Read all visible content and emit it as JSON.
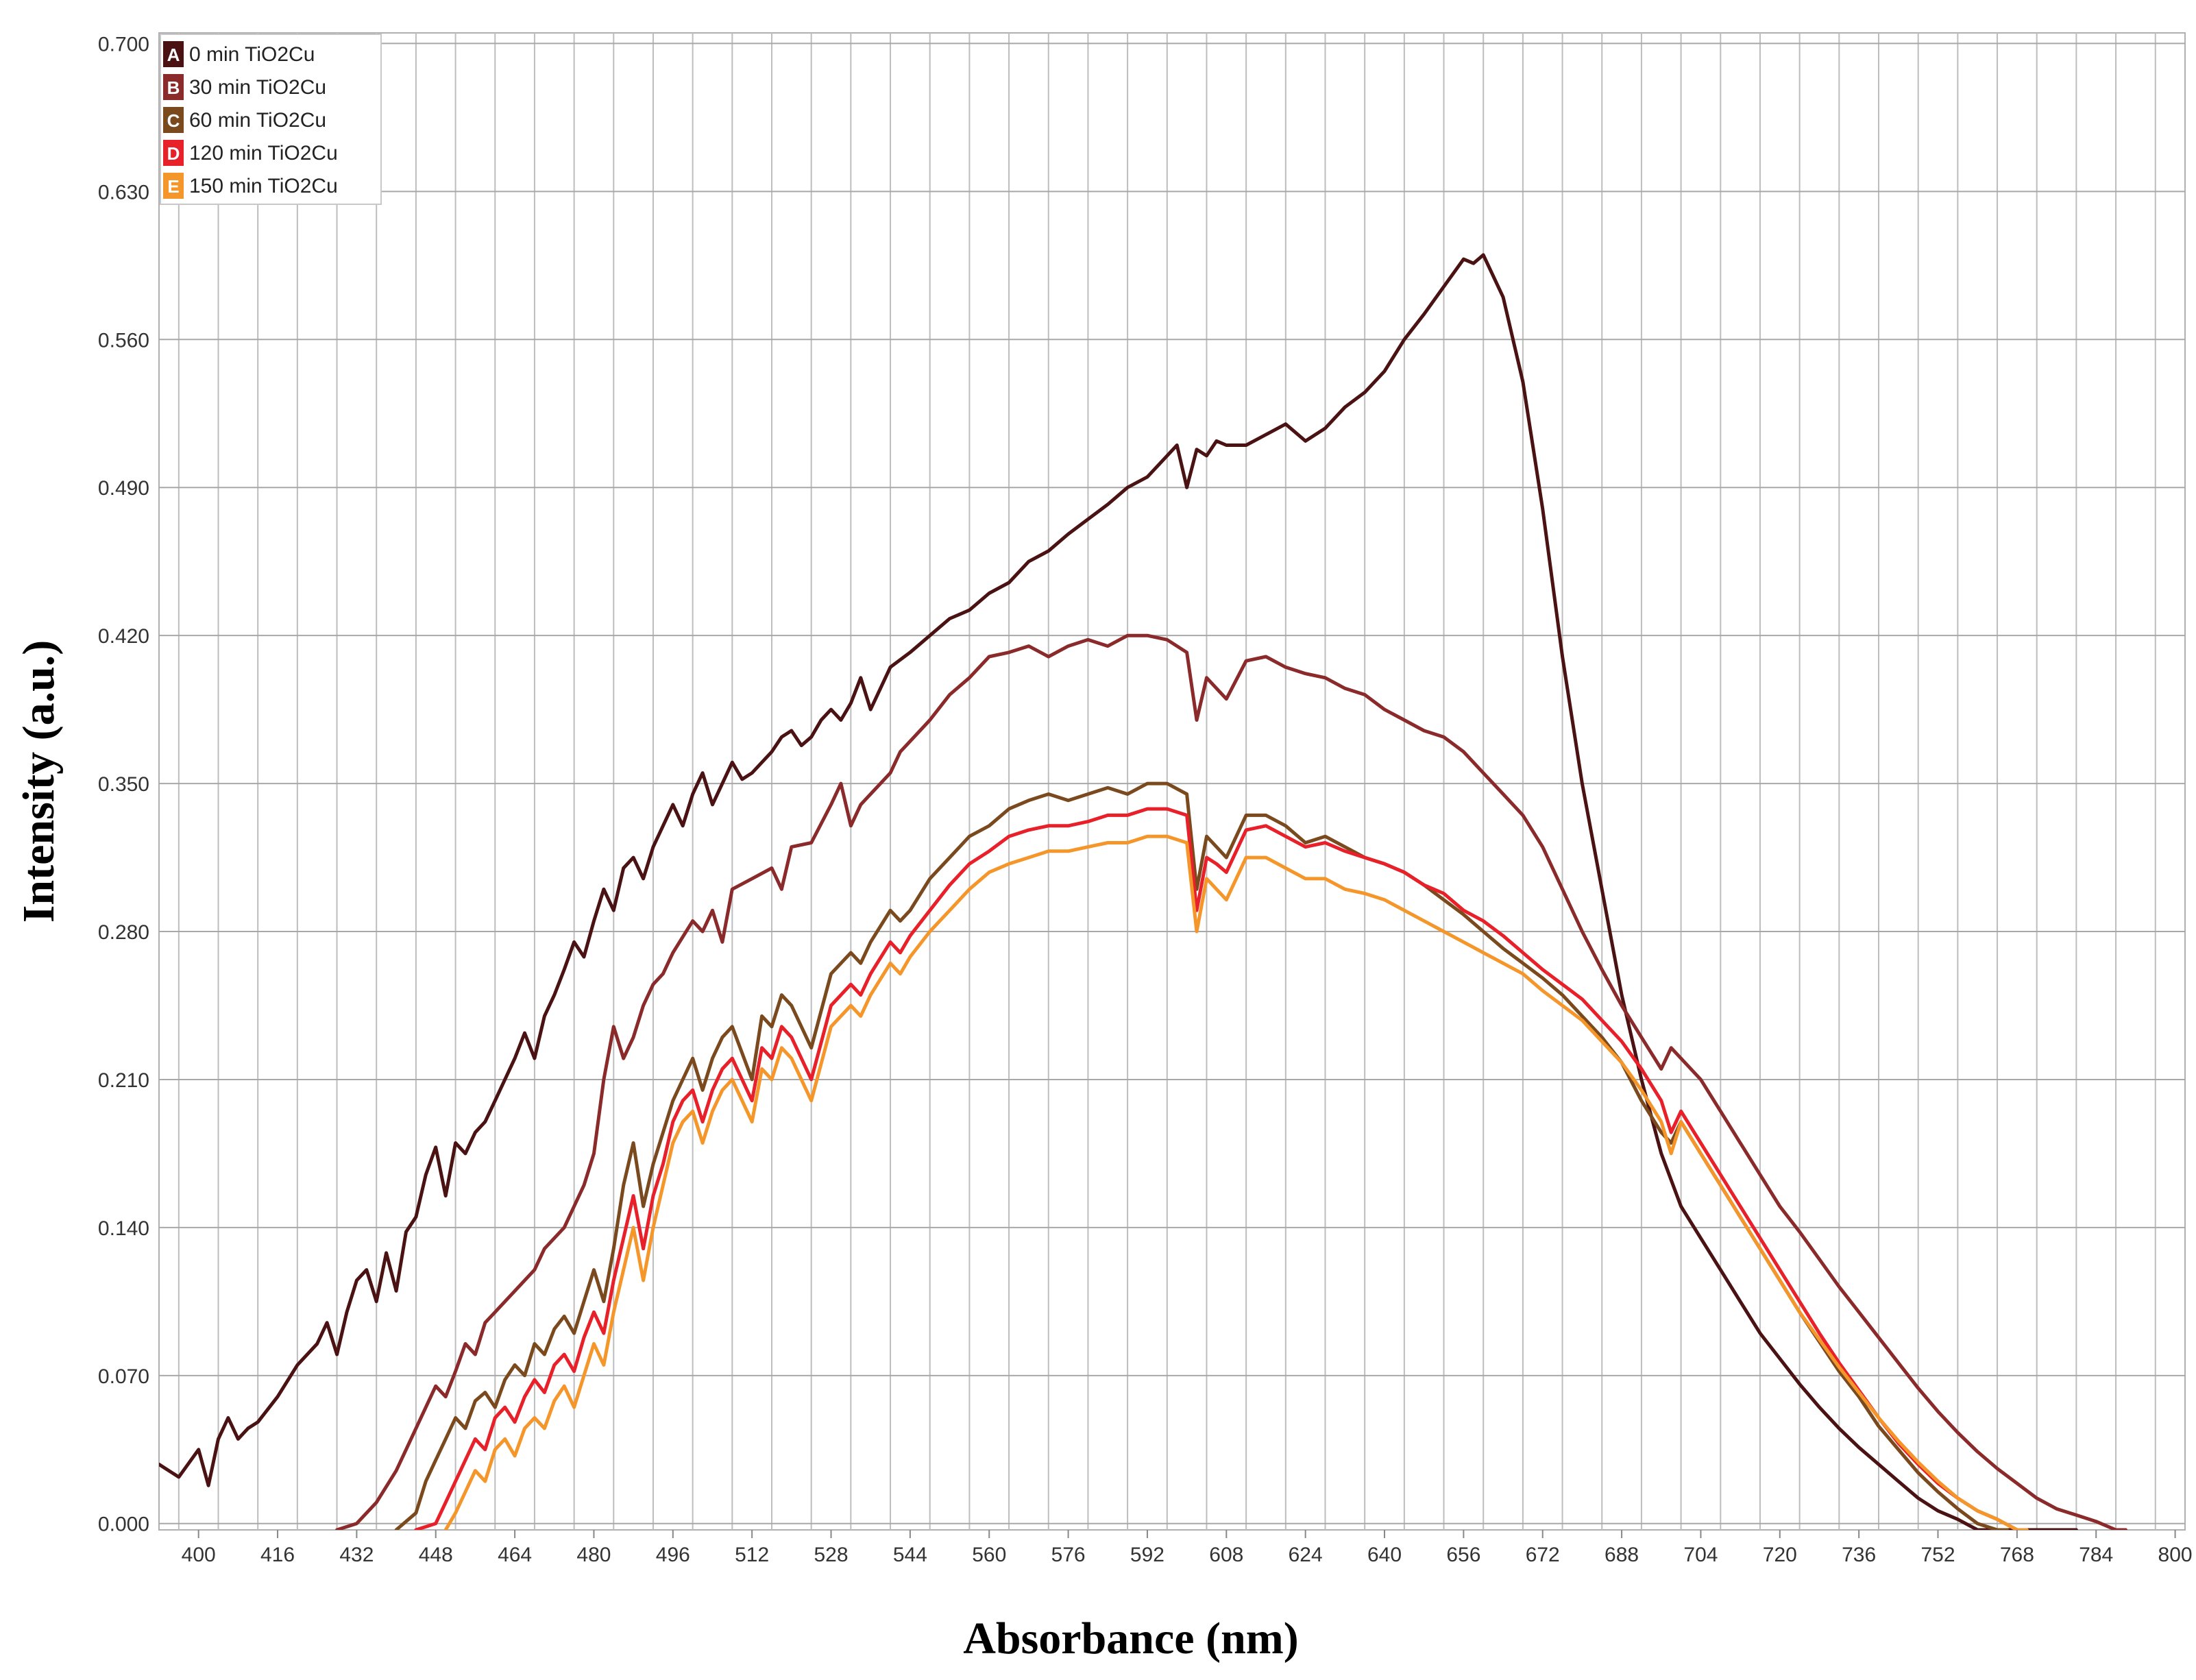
{
  "chart_data": {
    "type": "line",
    "title": "",
    "xlabel": "Absorbance (nm)",
    "ylabel": "Intensity (a.u.)",
    "xlim": [
      392,
      802
    ],
    "ylim": [
      -0.003,
      0.705
    ],
    "x_ticks": [
      400,
      416,
      432,
      448,
      464,
      480,
      496,
      512,
      528,
      544,
      560,
      576,
      592,
      608,
      624,
      640,
      656,
      672,
      688,
      704,
      720,
      736,
      752,
      768,
      784,
      800
    ],
    "x_tick_labels": [
      "400",
      "416",
      "432",
      "448",
      "464",
      "480",
      "496",
      "512",
      "528",
      "544",
      "560",
      "576",
      "592",
      "608",
      "624",
      "640",
      "656",
      "672",
      "688",
      "704",
      "720",
      "736",
      "752",
      "768",
      "784",
      "800"
    ],
    "y_ticks": [
      0.0,
      0.07,
      0.14,
      0.21,
      0.28,
      0.35,
      0.42,
      0.49,
      0.56,
      0.63,
      0.7
    ],
    "y_tick_labels": [
      "0.000",
      "0.070",
      "0.140",
      "0.210",
      "0.280",
      "0.350",
      "0.420",
      "0.490",
      "0.560",
      "0.630",
      "0.700"
    ],
    "grid": true,
    "legend_position": "top-left",
    "series": [
      {
        "name": "0 min TiO2Cu",
        "letter": "A",
        "color": "#4a1212",
        "x": [
          392,
          396,
          400,
          402,
          404,
          406,
          408,
          410,
          412,
          416,
          420,
          424,
          426,
          428,
          430,
          432,
          434,
          436,
          438,
          440,
          442,
          444,
          446,
          448,
          450,
          452,
          454,
          456,
          458,
          460,
          464,
          466,
          468,
          470,
          472,
          474,
          476,
          478,
          480,
          482,
          484,
          486,
          488,
          490,
          492,
          494,
          496,
          498,
          500,
          502,
          504,
          506,
          508,
          510,
          512,
          514,
          516,
          518,
          520,
          522,
          524,
          526,
          528,
          530,
          532,
          534,
          536,
          540,
          544,
          548,
          552,
          556,
          560,
          564,
          568,
          572,
          576,
          580,
          584,
          588,
          592,
          596,
          598,
          600,
          602,
          604,
          606,
          608,
          612,
          616,
          620,
          624,
          628,
          632,
          636,
          640,
          644,
          648,
          652,
          656,
          658,
          660,
          664,
          668,
          672,
          676,
          680,
          684,
          688,
          692,
          696,
          700,
          704,
          708,
          712,
          716,
          720,
          724,
          728,
          732,
          736,
          740,
          744,
          748,
          752,
          756,
          760,
          764,
          768,
          772,
          776,
          780
        ],
        "values": [
          0.028,
          0.022,
          0.035,
          0.018,
          0.04,
          0.05,
          0.04,
          0.045,
          0.048,
          0.06,
          0.075,
          0.085,
          0.095,
          0.08,
          0.1,
          0.115,
          0.12,
          0.105,
          0.128,
          0.11,
          0.138,
          0.145,
          0.165,
          0.178,
          0.155,
          0.18,
          0.175,
          0.185,
          0.19,
          0.2,
          0.22,
          0.232,
          0.22,
          0.24,
          0.25,
          0.262,
          0.275,
          0.268,
          0.285,
          0.3,
          0.29,
          0.31,
          0.315,
          0.305,
          0.32,
          0.33,
          0.34,
          0.33,
          0.345,
          0.355,
          0.34,
          0.35,
          0.36,
          0.352,
          0.355,
          0.36,
          0.365,
          0.372,
          0.375,
          0.368,
          0.372,
          0.38,
          0.385,
          0.38,
          0.388,
          0.4,
          0.385,
          0.405,
          0.412,
          0.42,
          0.428,
          0.432,
          0.44,
          0.445,
          0.455,
          0.46,
          0.468,
          0.475,
          0.482,
          0.49,
          0.495,
          0.505,
          0.51,
          0.49,
          0.508,
          0.505,
          0.512,
          0.51,
          0.51,
          0.515,
          0.52,
          0.512,
          0.518,
          0.528,
          0.535,
          0.545,
          0.56,
          0.572,
          0.585,
          0.598,
          0.596,
          0.6,
          0.58,
          0.54,
          0.48,
          0.41,
          0.35,
          0.3,
          0.25,
          0.21,
          0.175,
          0.15,
          0.135,
          0.12,
          0.105,
          0.09,
          0.078,
          0.066,
          0.055,
          0.045,
          0.036,
          0.028,
          0.02,
          0.012,
          0.006,
          0.002,
          -0.003,
          -0.003,
          -0.003,
          -0.003,
          -0.003,
          -0.003
        ]
      },
      {
        "name": "30 min TiO2Cu",
        "letter": "B",
        "color": "#8b2a2a",
        "x": [
          428,
          432,
          436,
          440,
          442,
          444,
          446,
          448,
          450,
          452,
          454,
          456,
          458,
          460,
          464,
          468,
          470,
          472,
          474,
          476,
          478,
          480,
          482,
          484,
          486,
          488,
          490,
          492,
          494,
          496,
          500,
          502,
          504,
          506,
          508,
          512,
          516,
          518,
          520,
          524,
          528,
          530,
          532,
          534,
          536,
          540,
          542,
          544,
          548,
          552,
          556,
          560,
          564,
          568,
          572,
          576,
          580,
          584,
          588,
          592,
          596,
          600,
          602,
          604,
          606,
          608,
          612,
          616,
          620,
          624,
          628,
          632,
          636,
          640,
          644,
          648,
          652,
          656,
          660,
          664,
          668,
          672,
          676,
          680,
          684,
          688,
          692,
          696,
          698,
          700,
          704,
          708,
          712,
          716,
          720,
          724,
          728,
          732,
          736,
          740,
          744,
          748,
          752,
          756,
          760,
          764,
          768,
          772,
          776,
          780,
          784,
          788,
          790
        ],
        "values": [
          -0.003,
          0.0,
          0.01,
          0.025,
          0.035,
          0.045,
          0.055,
          0.065,
          0.06,
          0.072,
          0.085,
          0.08,
          0.095,
          0.1,
          0.11,
          0.12,
          0.13,
          0.135,
          0.14,
          0.15,
          0.16,
          0.175,
          0.21,
          0.235,
          0.22,
          0.23,
          0.245,
          0.255,
          0.26,
          0.27,
          0.285,
          0.28,
          0.29,
          0.275,
          0.3,
          0.305,
          0.31,
          0.3,
          0.32,
          0.322,
          0.34,
          0.35,
          0.33,
          0.34,
          0.345,
          0.355,
          0.365,
          0.37,
          0.38,
          0.392,
          0.4,
          0.41,
          0.412,
          0.415,
          0.41,
          0.415,
          0.418,
          0.415,
          0.42,
          0.42,
          0.418,
          0.412,
          0.38,
          0.4,
          0.395,
          0.39,
          0.408,
          0.41,
          0.405,
          0.402,
          0.4,
          0.395,
          0.392,
          0.385,
          0.38,
          0.375,
          0.372,
          0.365,
          0.355,
          0.345,
          0.335,
          0.32,
          0.3,
          0.28,
          0.262,
          0.245,
          0.23,
          0.215,
          0.225,
          0.22,
          0.21,
          0.195,
          0.18,
          0.165,
          0.15,
          0.138,
          0.125,
          0.112,
          0.1,
          0.088,
          0.076,
          0.064,
          0.053,
          0.043,
          0.034,
          0.026,
          0.019,
          0.012,
          0.007,
          0.004,
          0.001,
          -0.003,
          -0.003
        ]
      },
      {
        "name": "60 min TiO2Cu",
        "letter": "C",
        "color": "#7a4a1e",
        "x": [
          440,
          444,
          446,
          448,
          450,
          452,
          454,
          456,
          458,
          460,
          462,
          464,
          466,
          468,
          470,
          472,
          474,
          476,
          478,
          480,
          482,
          484,
          486,
          488,
          490,
          492,
          494,
          496,
          498,
          500,
          502,
          504,
          506,
          508,
          512,
          514,
          516,
          518,
          520,
          524,
          528,
          532,
          534,
          536,
          540,
          542,
          544,
          548,
          552,
          556,
          560,
          564,
          568,
          572,
          576,
          580,
          584,
          588,
          592,
          596,
          600,
          602,
          604,
          606,
          608,
          612,
          616,
          620,
          624,
          628,
          632,
          636,
          640,
          644,
          648,
          652,
          656,
          660,
          664,
          668,
          672,
          676,
          680,
          684,
          688,
          692,
          696,
          698,
          700,
          704,
          708,
          712,
          716,
          720,
          724,
          728,
          732,
          736,
          740,
          744,
          748,
          752,
          756,
          760,
          764,
          766
        ],
        "values": [
          -0.003,
          0.005,
          0.02,
          0.03,
          0.04,
          0.05,
          0.045,
          0.058,
          0.062,
          0.055,
          0.068,
          0.075,
          0.07,
          0.085,
          0.08,
          0.092,
          0.098,
          0.09,
          0.105,
          0.12,
          0.105,
          0.13,
          0.16,
          0.18,
          0.15,
          0.17,
          0.185,
          0.2,
          0.21,
          0.22,
          0.205,
          0.22,
          0.23,
          0.235,
          0.21,
          0.24,
          0.235,
          0.25,
          0.245,
          0.225,
          0.26,
          0.27,
          0.265,
          0.275,
          0.29,
          0.285,
          0.29,
          0.305,
          0.315,
          0.325,
          0.33,
          0.338,
          0.342,
          0.345,
          0.342,
          0.345,
          0.348,
          0.345,
          0.35,
          0.35,
          0.345,
          0.3,
          0.325,
          0.32,
          0.315,
          0.335,
          0.335,
          0.33,
          0.322,
          0.325,
          0.32,
          0.315,
          0.312,
          0.308,
          0.302,
          0.295,
          0.288,
          0.28,
          0.272,
          0.265,
          0.258,
          0.25,
          0.24,
          0.23,
          0.218,
          0.2,
          0.185,
          0.18,
          0.19,
          0.175,
          0.16,
          0.145,
          0.13,
          0.115,
          0.1,
          0.086,
          0.072,
          0.06,
          0.046,
          0.035,
          0.024,
          0.015,
          0.007,
          0.0,
          -0.003,
          -0.003
        ]
      },
      {
        "name": "120 min TiO2Cu",
        "letter": "D",
        "color": "#e8202a",
        "x": [
          444,
          448,
          450,
          452,
          454,
          456,
          458,
          460,
          462,
          464,
          466,
          468,
          470,
          472,
          474,
          476,
          478,
          480,
          482,
          484,
          486,
          488,
          490,
          492,
          494,
          496,
          498,
          500,
          502,
          504,
          506,
          508,
          512,
          514,
          516,
          518,
          520,
          524,
          528,
          532,
          534,
          536,
          540,
          542,
          544,
          548,
          552,
          556,
          560,
          564,
          568,
          572,
          576,
          580,
          584,
          588,
          592,
          596,
          600,
          602,
          604,
          606,
          608,
          612,
          616,
          620,
          624,
          628,
          632,
          636,
          640,
          644,
          648,
          652,
          656,
          660,
          664,
          668,
          672,
          676,
          680,
          684,
          688,
          692,
          696,
          698,
          700,
          704,
          708,
          712,
          716,
          720,
          724,
          728,
          732,
          736,
          740,
          744,
          748,
          752,
          756,
          760,
          764,
          768,
          770
        ],
        "values": [
          -0.003,
          0.0,
          0.01,
          0.02,
          0.03,
          0.04,
          0.035,
          0.05,
          0.055,
          0.048,
          0.06,
          0.068,
          0.062,
          0.075,
          0.08,
          0.072,
          0.088,
          0.1,
          0.09,
          0.115,
          0.135,
          0.155,
          0.13,
          0.155,
          0.17,
          0.19,
          0.2,
          0.205,
          0.19,
          0.205,
          0.215,
          0.22,
          0.2,
          0.225,
          0.22,
          0.235,
          0.23,
          0.21,
          0.245,
          0.255,
          0.25,
          0.26,
          0.275,
          0.27,
          0.278,
          0.29,
          0.302,
          0.312,
          0.318,
          0.325,
          0.328,
          0.33,
          0.33,
          0.332,
          0.335,
          0.335,
          0.338,
          0.338,
          0.335,
          0.29,
          0.315,
          0.312,
          0.308,
          0.328,
          0.33,
          0.325,
          0.32,
          0.322,
          0.318,
          0.315,
          0.312,
          0.308,
          0.302,
          0.298,
          0.29,
          0.285,
          0.278,
          0.27,
          0.262,
          0.255,
          0.248,
          0.238,
          0.228,
          0.215,
          0.2,
          0.185,
          0.195,
          0.18,
          0.165,
          0.15,
          0.135,
          0.12,
          0.105,
          0.09,
          0.076,
          0.063,
          0.05,
          0.038,
          0.028,
          0.019,
          0.012,
          0.006,
          0.002,
          -0.003,
          -0.003
        ]
      },
      {
        "name": "150 min TiO2Cu",
        "letter": "E",
        "color": "#f5962a",
        "x": [
          450,
          452,
          454,
          456,
          458,
          460,
          462,
          464,
          466,
          468,
          470,
          472,
          474,
          476,
          478,
          480,
          482,
          484,
          486,
          488,
          490,
          492,
          494,
          496,
          498,
          500,
          502,
          504,
          506,
          508,
          512,
          514,
          516,
          518,
          520,
          524,
          528,
          532,
          534,
          536,
          540,
          542,
          544,
          548,
          552,
          556,
          560,
          564,
          568,
          572,
          576,
          580,
          584,
          588,
          592,
          596,
          600,
          602,
          604,
          606,
          608,
          612,
          616,
          620,
          624,
          628,
          632,
          636,
          640,
          644,
          648,
          652,
          656,
          660,
          664,
          668,
          672,
          676,
          680,
          684,
          688,
          692,
          696,
          698,
          700,
          704,
          708,
          712,
          716,
          720,
          724,
          728,
          732,
          736,
          740,
          744,
          748,
          752,
          756,
          760,
          764,
          768,
          770
        ],
        "values": [
          -0.003,
          0.005,
          0.015,
          0.025,
          0.02,
          0.035,
          0.04,
          0.032,
          0.045,
          0.05,
          0.045,
          0.058,
          0.065,
          0.055,
          0.07,
          0.085,
          0.075,
          0.1,
          0.12,
          0.14,
          0.115,
          0.14,
          0.16,
          0.18,
          0.19,
          0.195,
          0.18,
          0.195,
          0.205,
          0.21,
          0.19,
          0.215,
          0.21,
          0.225,
          0.22,
          0.2,
          0.235,
          0.245,
          0.24,
          0.25,
          0.265,
          0.26,
          0.268,
          0.28,
          0.29,
          0.3,
          0.308,
          0.312,
          0.315,
          0.318,
          0.318,
          0.32,
          0.322,
          0.322,
          0.325,
          0.325,
          0.322,
          0.28,
          0.305,
          0.3,
          0.295,
          0.315,
          0.315,
          0.31,
          0.305,
          0.305,
          0.3,
          0.298,
          0.295,
          0.29,
          0.285,
          0.28,
          0.275,
          0.27,
          0.265,
          0.26,
          0.252,
          0.245,
          0.238,
          0.228,
          0.218,
          0.205,
          0.19,
          0.175,
          0.19,
          0.175,
          0.16,
          0.145,
          0.13,
          0.115,
          0.1,
          0.087,
          0.074,
          0.062,
          0.05,
          0.039,
          0.029,
          0.02,
          0.012,
          0.006,
          0.002,
          -0.003,
          -0.003
        ]
      }
    ]
  }
}
